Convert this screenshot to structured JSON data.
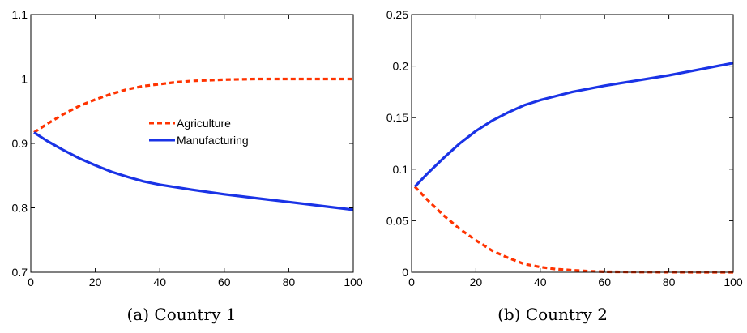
{
  "chart_data": [
    {
      "type": "line",
      "caption": "(a) Country 1",
      "xlim": [
        0,
        100
      ],
      "ylim": [
        0.7,
        1.1
      ],
      "xticks": [
        0,
        20,
        40,
        60,
        80,
        100
      ],
      "yticks": [
        0.7,
        0.8,
        0.9,
        1,
        1.1
      ],
      "xtick_labels": [
        "0",
        "20",
        "40",
        "60",
        "80",
        "100"
      ],
      "ytick_labels": [
        "0.7",
        "0.8",
        "0.9",
        "1",
        "1.1"
      ],
      "legend": {
        "position": "center"
      },
      "series": [
        {
          "name": "Agriculture",
          "style": "dashed",
          "color": "#ff3300",
          "x": [
            1,
            5,
            10,
            15,
            20,
            25,
            30,
            35,
            40,
            45,
            50,
            60,
            70,
            80,
            90,
            100
          ],
          "y": [
            0.917,
            0.93,
            0.945,
            0.958,
            0.968,
            0.977,
            0.984,
            0.989,
            0.992,
            0.995,
            0.997,
            0.999,
            1.0,
            1.0,
            1.0,
            1.0
          ]
        },
        {
          "name": "Manufacturing",
          "style": "solid",
          "color": "#1a33e6",
          "x": [
            1,
            5,
            10,
            15,
            20,
            25,
            30,
            35,
            40,
            45,
            50,
            60,
            70,
            80,
            90,
            100
          ],
          "y": [
            0.917,
            0.904,
            0.89,
            0.877,
            0.866,
            0.856,
            0.848,
            0.841,
            0.836,
            0.832,
            0.828,
            0.821,
            0.815,
            0.809,
            0.803,
            0.797
          ]
        }
      ]
    },
    {
      "type": "line",
      "caption": "(b) Country 2",
      "xlim": [
        0,
        100
      ],
      "ylim": [
        0,
        0.25
      ],
      "xticks": [
        0,
        20,
        40,
        60,
        80,
        100
      ],
      "yticks": [
        0,
        0.05,
        0.1,
        0.15,
        0.2,
        0.25
      ],
      "xtick_labels": [
        "0",
        "20",
        "40",
        "60",
        "80",
        "100"
      ],
      "ytick_labels": [
        "0",
        "0.05",
        "0.1",
        "0.15",
        "0.2",
        "0.25"
      ],
      "series": [
        {
          "name": "Agriculture",
          "style": "dashed",
          "color": "#ff3300",
          "x": [
            1,
            5,
            10,
            15,
            20,
            25,
            30,
            35,
            40,
            45,
            50,
            55,
            60,
            70,
            80,
            90,
            100
          ],
          "y": [
            0.083,
            0.07,
            0.055,
            0.042,
            0.031,
            0.021,
            0.014,
            0.008,
            0.005,
            0.003,
            0.002,
            0.001,
            0.0005,
            0.0002,
            0.0001,
            0.0,
            0.0
          ]
        },
        {
          "name": "Manufacturing",
          "style": "solid",
          "color": "#1a33e6",
          "x": [
            1,
            5,
            10,
            15,
            20,
            25,
            30,
            35,
            40,
            45,
            50,
            60,
            70,
            80,
            90,
            100
          ],
          "y": [
            0.083,
            0.096,
            0.111,
            0.125,
            0.137,
            0.147,
            0.155,
            0.162,
            0.167,
            0.171,
            0.175,
            0.181,
            0.186,
            0.191,
            0.197,
            0.203
          ]
        }
      ]
    }
  ]
}
